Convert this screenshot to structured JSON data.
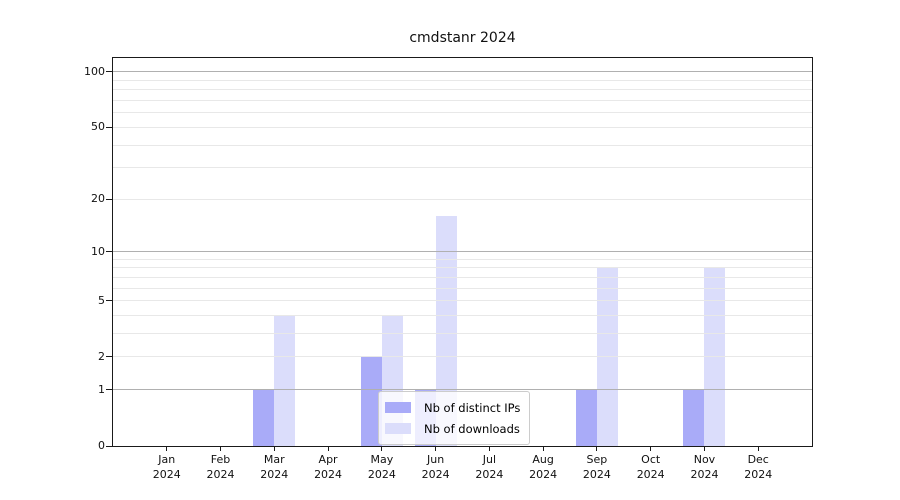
{
  "chart_data": {
    "type": "bar",
    "title": "cmdstanr 2024",
    "categories": [
      "Jan",
      "Feb",
      "Mar",
      "Apr",
      "May",
      "Jun",
      "Jul",
      "Aug",
      "Sep",
      "Oct",
      "Nov",
      "Dec"
    ],
    "x_year_label": "2024",
    "series": [
      {
        "name": "Nb of distinct IPs",
        "color": "#a9abf8",
        "values": [
          0,
          0,
          1,
          0,
          2,
          1,
          0,
          0,
          1,
          0,
          1,
          0
        ]
      },
      {
        "name": "Nb of downloads",
        "color": "#dbddfb",
        "values": [
          0,
          0,
          4,
          0,
          4,
          16,
          0,
          0,
          8,
          0,
          8,
          0
        ]
      }
    ],
    "y_axis": {
      "scale": "log1p",
      "ylim": [
        0,
        118
      ],
      "labeled_ticks": [
        0,
        1,
        2,
        5,
        10,
        20,
        50,
        100
      ],
      "major_gridlines": [
        1,
        10,
        100
      ],
      "minor_gridlines": [
        2,
        3,
        4,
        5,
        6,
        7,
        8,
        9,
        20,
        30,
        40,
        50,
        60,
        70,
        80,
        90
      ]
    },
    "xlabel": "",
    "ylabel": "",
    "grid": true,
    "legend": {
      "entries": [
        "Nb of distinct IPs",
        "Nb of downloads"
      ],
      "position": "lower center"
    }
  },
  "colors": {
    "distinct_ips": "#a9abf8",
    "downloads": "#dbddfb",
    "major_grid": "#b0b0b0",
    "minor_grid": "#e8e8e8",
    "spine": "#1a1a1a",
    "legend_border": "#cccccc",
    "legend_bg": "rgba(255,255,255,0.8)",
    "text": "#111111"
  }
}
